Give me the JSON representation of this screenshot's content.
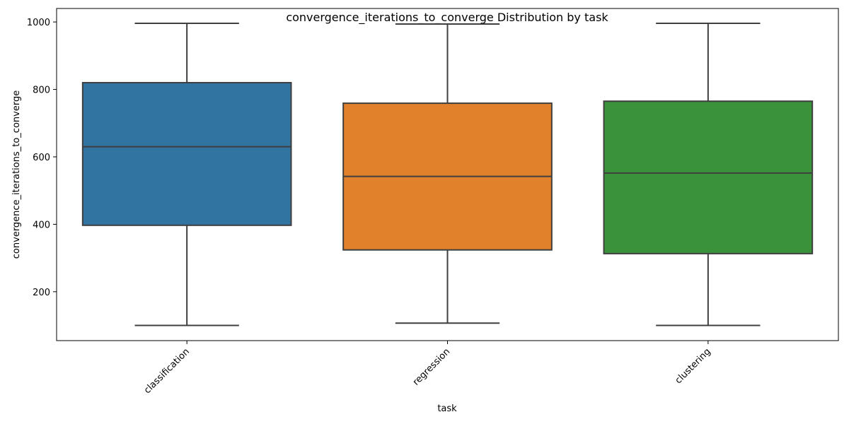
{
  "chart_data": {
    "type": "boxplot",
    "title": "convergence_iterations_to_converge Distribution by task",
    "xlabel": "task",
    "ylabel": "convergence_iterations_to_converge",
    "categories": [
      "classification",
      "regression",
      "clustering"
    ],
    "boxes": [
      {
        "category": "classification",
        "min": 100,
        "q1": 397,
        "median": 630,
        "q3": 820,
        "max": 996,
        "color": "#3274a1"
      },
      {
        "category": "regression",
        "min": 107,
        "q1": 324,
        "median": 542,
        "q3": 759,
        "max": 994,
        "color": "#e1812c"
      },
      {
        "category": "clustering",
        "min": 100,
        "q1": 313,
        "median": 552,
        "q3": 765,
        "max": 996,
        "color": "#3a923a"
      }
    ],
    "yticks": [
      200,
      400,
      600,
      800,
      1000
    ],
    "ylim": [
      55,
      1040
    ],
    "grid": false,
    "legend": "none"
  }
}
